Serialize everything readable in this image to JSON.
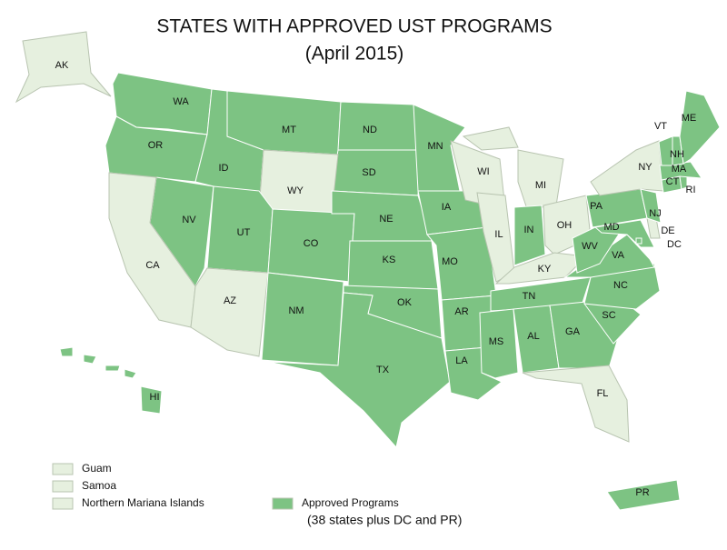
{
  "title": "STATES WITH APPROVED UST PROGRAMS",
  "subtitle": "(April 2015)",
  "colors": {
    "approved": "#7dc383",
    "other": "#e6f0df",
    "border": "#ffffff"
  },
  "states": [
    {
      "label": "AK",
      "approved": false
    },
    {
      "label": "WA",
      "approved": true
    },
    {
      "label": "OR",
      "approved": true
    },
    {
      "label": "ID",
      "approved": true
    },
    {
      "label": "MT",
      "approved": true
    },
    {
      "label": "ND",
      "approved": true
    },
    {
      "label": "SD",
      "approved": true
    },
    {
      "label": "WY",
      "approved": false
    },
    {
      "label": "NV",
      "approved": true
    },
    {
      "label": "CA",
      "approved": false
    },
    {
      "label": "UT",
      "approved": true
    },
    {
      "label": "CO",
      "approved": true
    },
    {
      "label": "NE",
      "approved": true
    },
    {
      "label": "KS",
      "approved": true
    },
    {
      "label": "AZ",
      "approved": false
    },
    {
      "label": "NM",
      "approved": true
    },
    {
      "label": "OK",
      "approved": true
    },
    {
      "label": "TX",
      "approved": true
    },
    {
      "label": "MN",
      "approved": true
    },
    {
      "label": "IA",
      "approved": true
    },
    {
      "label": "MO",
      "approved": true
    },
    {
      "label": "AR",
      "approved": true
    },
    {
      "label": "LA",
      "approved": true
    },
    {
      "label": "WI",
      "approved": false
    },
    {
      "label": "IL",
      "approved": false
    },
    {
      "label": "MI",
      "approved": false
    },
    {
      "label": "IN",
      "approved": true
    },
    {
      "label": "OH",
      "approved": false
    },
    {
      "label": "KY",
      "approved": false
    },
    {
      "label": "TN",
      "approved": true
    },
    {
      "label": "MS",
      "approved": true
    },
    {
      "label": "AL",
      "approved": true
    },
    {
      "label": "GA",
      "approved": true
    },
    {
      "label": "FL",
      "approved": false
    },
    {
      "label": "SC",
      "approved": true
    },
    {
      "label": "NC",
      "approved": true
    },
    {
      "label": "VA",
      "approved": true
    },
    {
      "label": "WV",
      "approved": true
    },
    {
      "label": "PA",
      "approved": true
    },
    {
      "label": "NY",
      "approved": false
    },
    {
      "label": "MD",
      "approved": true
    },
    {
      "label": "DE",
      "approved": false
    },
    {
      "label": "DC",
      "approved": true
    },
    {
      "label": "NJ",
      "approved": true
    },
    {
      "label": "CT",
      "approved": true
    },
    {
      "label": "RI",
      "approved": true
    },
    {
      "label": "MA",
      "approved": true
    },
    {
      "label": "NH",
      "approved": true
    },
    {
      "label": "VT",
      "approved": true
    },
    {
      "label": "ME",
      "approved": true
    },
    {
      "label": "HI",
      "approved": true
    },
    {
      "label": "PR",
      "approved": true
    }
  ],
  "legend": [
    {
      "label": "Guam",
      "approved": false
    },
    {
      "label": "Samoa",
      "approved": false
    },
    {
      "label": "Northern Mariana Islands",
      "approved": false
    },
    {
      "label": "Approved Programs",
      "approved": true
    }
  ],
  "legend_note": "(38 states plus DC and PR)"
}
